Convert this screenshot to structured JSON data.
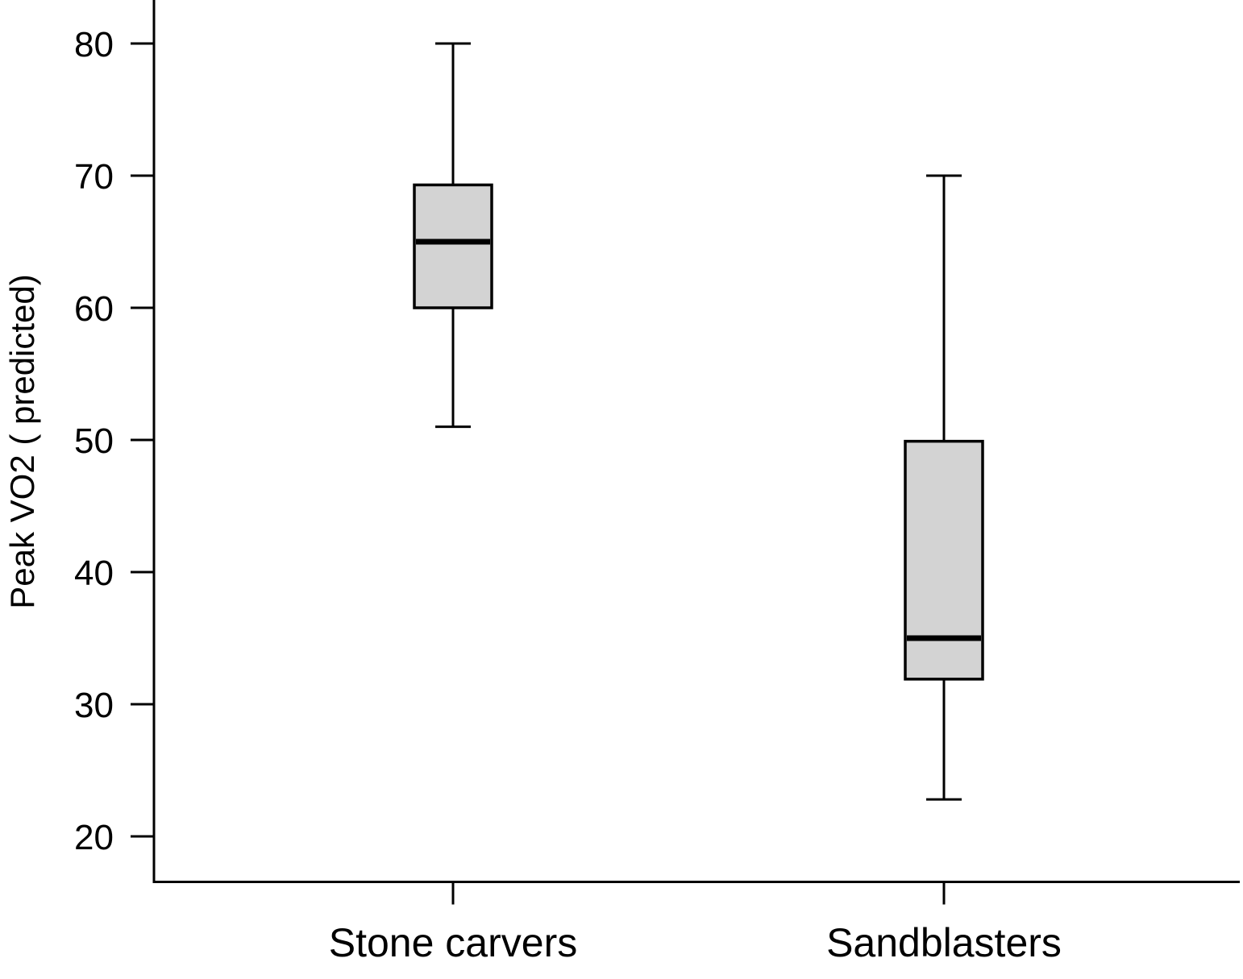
{
  "chart_data": {
    "type": "boxplot",
    "title": "",
    "xlabel": "",
    "ylabel": "Peak VO2 ( predicted)",
    "ylim": [
      16.5,
      83.5
    ],
    "yticks": [
      20,
      30,
      40,
      50,
      60,
      70,
      80
    ],
    "grid": false,
    "colors": {
      "box_fill": "#d3d3d3",
      "stroke": "#000000"
    },
    "categories": [
      "Stone carvers",
      "Sandblasters"
    ],
    "boxes": [
      {
        "category": "Stone carvers",
        "whisker_low": 51,
        "q1": 60,
        "median": 65,
        "q3": 69.3,
        "whisker_high": 80
      },
      {
        "category": "Sandblasters",
        "whisker_low": 22.8,
        "q1": 31.9,
        "median": 35,
        "q3": 49.9,
        "whisker_high": 70
      }
    ]
  }
}
